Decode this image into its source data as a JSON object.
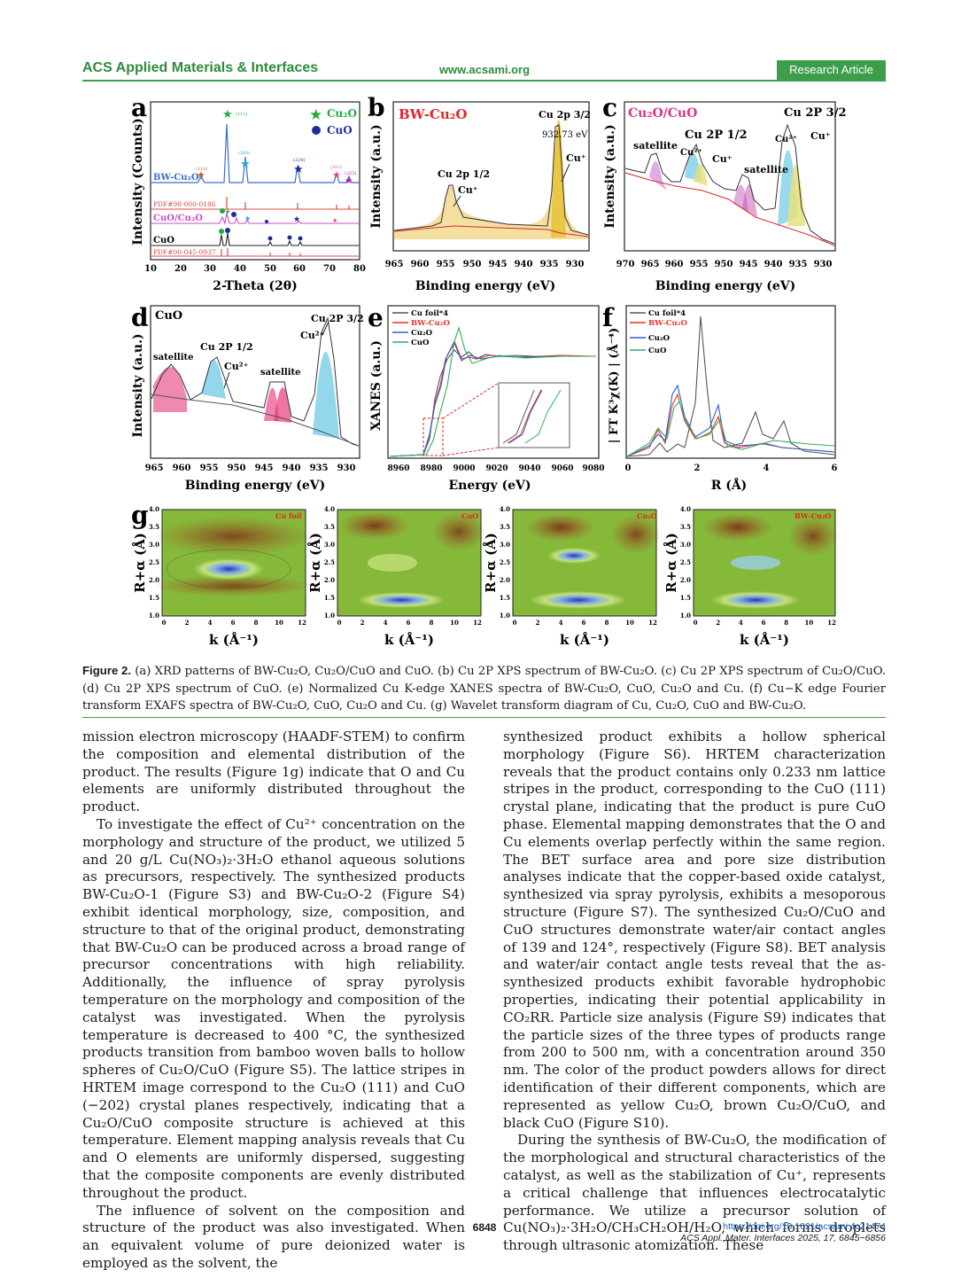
{
  "header": {
    "journal": "ACS Applied Materials & Interfaces",
    "url": "www.acsami.org",
    "badge": "Research Article"
  },
  "figure": {
    "panels": {
      "a": {
        "letter": "a",
        "ylabel": "Intensity (Counts)",
        "xlabel": "2-Theta (2θ)",
        "xticks": [
          "10",
          "20",
          "30",
          "40",
          "50",
          "60",
          "70",
          "80"
        ],
        "legend": [
          "Cu₂O",
          "CuO"
        ],
        "traces": [
          "BW-Cu₂O",
          "PDF#98-000-0186",
          "CuO/Cu₂O",
          "CuO",
          "PDF#00-045-0937"
        ],
        "peak_labels": [
          "(111)",
          "(110)",
          "(200)",
          "(220)",
          "(311)",
          "(222)"
        ]
      },
      "b": {
        "letter": "b",
        "title": "BW-Cu₂O",
        "ylabel": "Intensity (a.u.)",
        "xlabel": "Binding energy (eV)",
        "xticks": [
          "965",
          "960",
          "955",
          "950",
          "945",
          "940",
          "935",
          "930"
        ],
        "labels": [
          "Cu 2p 3/2",
          "932.73 eV",
          "Cu⁺",
          "Cu 2p 1/2",
          "Cu⁺"
        ]
      },
      "c": {
        "letter": "c",
        "title": "Cu₂O/CuO",
        "ylabel": "Intensity (a.u.)",
        "xlabel": "Binding energy (eV)",
        "xticks": [
          "970",
          "965",
          "960",
          "955",
          "950",
          "945",
          "940",
          "935",
          "930"
        ],
        "labels": [
          "Cu 2P 3/2",
          "Cu 2P 1/2",
          "satellite",
          "satellite",
          "Cu²⁺",
          "Cu⁺",
          "Cu²⁺",
          "Cu⁺"
        ]
      },
      "d": {
        "letter": "d",
        "title": "CuO",
        "ylabel": "Intensity (a.u.)",
        "xlabel": "Binding energy (eV)",
        "xticks": [
          "965",
          "960",
          "955",
          "950",
          "945",
          "940",
          "935",
          "930"
        ],
        "labels": [
          "Cu 2P 3/2",
          "Cu²⁺",
          "Cu 2P 1/2",
          "Cu²⁺",
          "satellite",
          "satellite"
        ]
      },
      "e": {
        "letter": "e",
        "ylabel": "XANES (a.u.)",
        "xlabel": "Energy (eV)",
        "xticks": [
          "8960",
          "8980",
          "9000",
          "9020",
          "9040",
          "9060",
          "9080"
        ],
        "legend": [
          "Cu foil*4",
          "BW-Cu₂O",
          "Cu₂O",
          "CuO"
        ]
      },
      "f": {
        "letter": "f",
        "ylabel": "| FT K³χ(K) | (Å⁻⁴)",
        "xlabel": "R (Å)",
        "xticks": [
          "0",
          "2",
          "4",
          "6"
        ],
        "legend": [
          "Cu foil*4",
          "BW-Cu₂O",
          "Cu₂O",
          "CuO"
        ]
      },
      "g": {
        "letter": "g",
        "ylabel": "R+α (Å)",
        "xlabel": "k (Å⁻¹)",
        "yticks": [
          "4.0",
          "3.5",
          "3.0",
          "2.5",
          "2.0",
          "1.5",
          "1.0"
        ],
        "xticks": [
          "0",
          "2",
          "4",
          "6",
          "8",
          "10",
          "12"
        ],
        "maps": [
          "Cu foil",
          "CuO",
          "Cu₂O",
          "BW-Cu₂O"
        ]
      }
    },
    "colors": {
      "cu_foil": "#555555",
      "bw": "#e8322b",
      "cu2o": "#2b5fd9",
      "cuo": "#2fae5a"
    }
  },
  "caption": {
    "label": "Figure 2.",
    "text": "(a) XRD patterns of BW-Cu₂O, Cu₂O/CuO and CuO. (b) Cu 2P XPS spectrum of BW-Cu₂O. (c) Cu 2P XPS spectrum of Cu₂O/CuO. (d) Cu 2P XPS spectrum of CuO. (e) Normalized Cu K-edge XANES spectra of BW-Cu₂O, CuO, Cu₂O and Cu. (f) Cu−K edge Fourier transform EXAFS spectra of BW-Cu₂O, CuO, Cu₂O and Cu. (g) Wavelet transform diagram of Cu, Cu₂O, CuO and BW-Cu₂O."
  },
  "body": {
    "col1": [
      "mission electron microscopy (HAADF-STEM) to confirm the composition and elemental distribution of the product. The results (Figure 1g) indicate that O and Cu elements are uniformly distributed throughout the product.",
      "To investigate the effect of Cu²⁺ concentration on the morphology and structure of the product, we utilized 5 and 20 g/L Cu(NO₃)₂·3H₂O ethanol aqueous solutions as precursors, respectively. The synthesized products BW-Cu₂O-1 (Figure S3) and BW-Cu₂O-2 (Figure S4) exhibit identical morphology, size, composition, and structure to that of the original product, demonstrating that BW-Cu₂O can be produced across a broad range of precursor concentrations with high reliability. Additionally, the influence of spray pyrolysis temperature on the morphology and composition of the catalyst was investigated. When the pyrolysis temperature is decreased to 400 °C, the synthesized products transition from bamboo woven balls to hollow spheres of Cu₂O/CuO (Figure S5). The lattice stripes in HRTEM image correspond to the Cu₂O (111) and CuO (−202) crystal planes respectively, indicating that a Cu₂O/CuO composite structure is achieved at this temperature. Element mapping analysis reveals that Cu and O elements are uniformly dispersed, suggesting that the composite components are evenly distributed throughout the product.",
      "The influence of solvent on the composition and structure of the product was also investigated. When an equivalent volume of pure deionized water is employed as the solvent, the"
    ],
    "col2": [
      "synthesized product exhibits a hollow spherical morphology (Figure S6). HRTEM characterization reveals that the product contains only 0.233 nm lattice stripes in the product, corresponding to the CuO (111) crystal plane, indicating that the product is pure CuO phase. Elemental mapping demonstrates that the O and Cu elements overlap perfectly within the same region. The BET surface area and pore size distribution analyses indicate that the copper-based oxide catalyst, synthesized via spray pyrolysis, exhibits a mesoporous structure (Figure S7). The synthesized Cu₂O/CuO and CuO structures demonstrate water/air contact angles of 139 and 124°, respectively (Figure S8). BET analysis and water/air contact angle tests reveal that the as-synthesized products exhibit favorable hydrophobic properties, indicating their potential applicability in CO₂RR. Particle size analysis (Figure S9) indicates that the particle sizes of the three types of products range from 200 to 500 nm, with a concentration around 350 nm. The color of the product powders allows for direct identification of their different components, which are represented as yellow Cu₂O, brown Cu₂O/CuO, and black CuO (Figure S10).",
      "During the synthesis of BW-Cu₂O, the modification of the morphological and structural characteristics of the catalyst, as well as the stabilization of Cu⁺, represents a critical challenge that influences electrocatalytic performance. We utilize a precursor solution of Cu(NO₃)₂·3H₂O/CH₃CH₂OH/H₂O, which forms droplets through ultrasonic atomization. These"
    ]
  },
  "footer": {
    "page": "6848",
    "doi": "https://doi.org/10.1021/acsami.4c21474",
    "citation": "ACS Appl. Mater. Interfaces 2025, 17, 6845−6856"
  }
}
